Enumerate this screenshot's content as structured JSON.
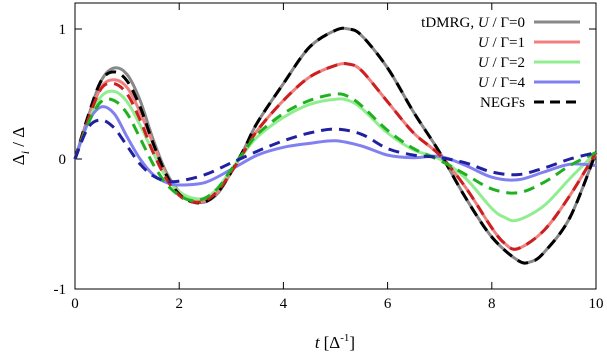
{
  "chart_data": {
    "type": "line",
    "xlabel": {
      "main": "t",
      "unit": "[Δ",
      "sup": "-1",
      "close": "]"
    },
    "ylabel": {
      "base": "Δ",
      "sub": "i",
      "rest": " / Δ"
    },
    "xlim": [
      0,
      10
    ],
    "ylim": [
      -1,
      1.2
    ],
    "xticks": [
      0,
      2,
      4,
      6,
      8,
      10
    ],
    "xtick_labels": [
      "0",
      "2",
      "4",
      "6",
      "8",
      "10"
    ],
    "yticks": [
      -1,
      0,
      1
    ],
    "ytick_labels": [
      "-1",
      "0",
      "1"
    ],
    "grid": false,
    "legend_position": "top-right",
    "legend": [
      {
        "label": "tDMRG, U / Γ=0",
        "color": "#888888",
        "dash": false
      },
      {
        "label": "U / Γ=1",
        "color": "#f08080",
        "dash": false
      },
      {
        "label": "U / Γ=2",
        "color": "#90ee90",
        "dash": false
      },
      {
        "label": "U / Γ=4",
        "color": "#8080f0",
        "dash": false
      },
      {
        "label": "NEGFs",
        "color": "#000000",
        "dash": true
      }
    ],
    "series": [
      {
        "style": "solid",
        "color": "#888888",
        "points": [
          [
            0,
            0
          ],
          [
            0.25,
            0.32
          ],
          [
            0.5,
            0.6
          ],
          [
            0.75,
            0.7
          ],
          [
            1,
            0.65
          ],
          [
            1.25,
            0.45
          ],
          [
            1.5,
            0.15
          ],
          [
            1.75,
            -0.1
          ],
          [
            2,
            -0.25
          ],
          [
            2.25,
            -0.32
          ],
          [
            2.5,
            -0.33
          ],
          [
            2.75,
            -0.26
          ],
          [
            3,
            -0.1
          ],
          [
            3.25,
            0.08
          ],
          [
            3.5,
            0.28
          ],
          [
            4,
            0.58
          ],
          [
            4.5,
            0.86
          ],
          [
            5,
            0.99
          ],
          [
            5.25,
            1.0
          ],
          [
            5.5,
            0.95
          ],
          [
            6,
            0.7
          ],
          [
            6.5,
            0.36
          ],
          [
            7,
            0.05
          ],
          [
            7.5,
            -0.3
          ],
          [
            8,
            -0.6
          ],
          [
            8.5,
            -0.78
          ],
          [
            8.75,
            -0.79
          ],
          [
            9,
            -0.72
          ],
          [
            9.5,
            -0.45
          ],
          [
            10,
            0.05
          ]
        ]
      },
      {
        "style": "solid",
        "color": "#f08080",
        "points": [
          [
            0,
            0
          ],
          [
            0.25,
            0.3
          ],
          [
            0.5,
            0.55
          ],
          [
            0.75,
            0.61
          ],
          [
            1,
            0.55
          ],
          [
            1.25,
            0.36
          ],
          [
            1.5,
            0.12
          ],
          [
            1.75,
            -0.12
          ],
          [
            2,
            -0.26
          ],
          [
            2.25,
            -0.32
          ],
          [
            2.5,
            -0.32
          ],
          [
            2.75,
            -0.25
          ],
          [
            3,
            -0.1
          ],
          [
            3.25,
            0.06
          ],
          [
            3.5,
            0.22
          ],
          [
            4,
            0.45
          ],
          [
            4.5,
            0.63
          ],
          [
            5,
            0.72
          ],
          [
            5.25,
            0.73
          ],
          [
            5.5,
            0.68
          ],
          [
            6,
            0.44
          ],
          [
            6.5,
            0.2
          ],
          [
            7,
            0.03
          ],
          [
            7.5,
            -0.22
          ],
          [
            8,
            -0.53
          ],
          [
            8.25,
            -0.65
          ],
          [
            8.5,
            -0.69
          ],
          [
            9,
            -0.55
          ],
          [
            9.5,
            -0.28
          ],
          [
            10,
            0.05
          ]
        ]
      },
      {
        "style": "solid",
        "color": "#90ee90",
        "points": [
          [
            0,
            0
          ],
          [
            0.25,
            0.28
          ],
          [
            0.5,
            0.48
          ],
          [
            0.75,
            0.52
          ],
          [
            1,
            0.44
          ],
          [
            1.25,
            0.26
          ],
          [
            1.5,
            0.05
          ],
          [
            1.75,
            -0.14
          ],
          [
            2,
            -0.25
          ],
          [
            2.25,
            -0.3
          ],
          [
            2.5,
            -0.3
          ],
          [
            2.75,
            -0.22
          ],
          [
            3,
            -0.08
          ],
          [
            3.25,
            0.05
          ],
          [
            3.5,
            0.17
          ],
          [
            4,
            0.32
          ],
          [
            4.5,
            0.42
          ],
          [
            5,
            0.46
          ],
          [
            5.25,
            0.45
          ],
          [
            5.5,
            0.39
          ],
          [
            6,
            0.2
          ],
          [
            6.5,
            0.07
          ],
          [
            7,
            0.0
          ],
          [
            7.5,
            -0.15
          ],
          [
            8,
            -0.38
          ],
          [
            8.25,
            -0.45
          ],
          [
            8.5,
            -0.47
          ],
          [
            9,
            -0.36
          ],
          [
            9.5,
            -0.15
          ],
          [
            10,
            0.05
          ]
        ]
      },
      {
        "style": "solid",
        "color": "#8080f0",
        "points": [
          [
            0,
            0
          ],
          [
            0.25,
            0.28
          ],
          [
            0.5,
            0.4
          ],
          [
            0.75,
            0.35
          ],
          [
            1,
            0.17
          ],
          [
            1.25,
            0.0
          ],
          [
            1.5,
            -0.12
          ],
          [
            1.75,
            -0.18
          ],
          [
            2,
            -0.2
          ],
          [
            2.5,
            -0.18
          ],
          [
            3,
            -0.08
          ],
          [
            3.5,
            0.03
          ],
          [
            4,
            0.09
          ],
          [
            4.5,
            0.12
          ],
          [
            5,
            0.14
          ],
          [
            5.5,
            0.1
          ],
          [
            6,
            0.03
          ],
          [
            6.5,
            0.01
          ],
          [
            7,
            0.02
          ],
          [
            7.5,
            -0.05
          ],
          [
            8,
            -0.14
          ],
          [
            8.5,
            -0.16
          ],
          [
            9,
            -0.1
          ],
          [
            9.5,
            -0.04
          ],
          [
            10,
            -0.05
          ]
        ]
      },
      {
        "style": "dash",
        "color": "#000000",
        "points": [
          [
            0,
            0
          ],
          [
            0.25,
            0.33
          ],
          [
            0.5,
            0.6
          ],
          [
            0.75,
            0.67
          ],
          [
            1,
            0.6
          ],
          [
            1.25,
            0.4
          ],
          [
            1.5,
            0.12
          ],
          [
            1.75,
            -0.12
          ],
          [
            2,
            -0.27
          ],
          [
            2.25,
            -0.33
          ],
          [
            2.5,
            -0.33
          ],
          [
            2.75,
            -0.25
          ],
          [
            3,
            -0.1
          ],
          [
            3.25,
            0.08
          ],
          [
            3.5,
            0.28
          ],
          [
            4,
            0.58
          ],
          [
            4.5,
            0.86
          ],
          [
            5,
            0.99
          ],
          [
            5.25,
            1.0
          ],
          [
            5.5,
            0.95
          ],
          [
            6,
            0.7
          ],
          [
            6.5,
            0.36
          ],
          [
            7,
            0.05
          ],
          [
            7.5,
            -0.3
          ],
          [
            8,
            -0.6
          ],
          [
            8.5,
            -0.78
          ],
          [
            8.75,
            -0.79
          ],
          [
            9,
            -0.72
          ],
          [
            9.5,
            -0.45
          ],
          [
            10,
            0.05
          ]
        ]
      },
      {
        "style": "dash",
        "color": "#cc2020",
        "points": [
          [
            0,
            0
          ],
          [
            0.25,
            0.3
          ],
          [
            0.5,
            0.54
          ],
          [
            0.75,
            0.58
          ],
          [
            1,
            0.5
          ],
          [
            1.25,
            0.3
          ],
          [
            1.5,
            0.05
          ],
          [
            1.75,
            -0.15
          ],
          [
            2,
            -0.28
          ],
          [
            2.25,
            -0.33
          ],
          [
            2.5,
            -0.32
          ],
          [
            2.75,
            -0.24
          ],
          [
            3,
            -0.1
          ],
          [
            3.25,
            0.06
          ],
          [
            3.5,
            0.22
          ],
          [
            4,
            0.45
          ],
          [
            4.5,
            0.63
          ],
          [
            5,
            0.72
          ],
          [
            5.25,
            0.73
          ],
          [
            5.5,
            0.68
          ],
          [
            6,
            0.44
          ],
          [
            6.5,
            0.2
          ],
          [
            7,
            0.03
          ],
          [
            7.5,
            -0.22
          ],
          [
            8,
            -0.53
          ],
          [
            8.25,
            -0.65
          ],
          [
            8.5,
            -0.69
          ],
          [
            9,
            -0.55
          ],
          [
            9.5,
            -0.28
          ],
          [
            10,
            0.05
          ]
        ]
      },
      {
        "style": "dash",
        "color": "#20b020",
        "points": [
          [
            0,
            0
          ],
          [
            0.25,
            0.27
          ],
          [
            0.5,
            0.44
          ],
          [
            0.75,
            0.45
          ],
          [
            1,
            0.35
          ],
          [
            1.25,
            0.16
          ],
          [
            1.5,
            -0.04
          ],
          [
            1.75,
            -0.19
          ],
          [
            2,
            -0.28
          ],
          [
            2.25,
            -0.32
          ],
          [
            2.5,
            -0.3
          ],
          [
            2.75,
            -0.22
          ],
          [
            3,
            -0.08
          ],
          [
            3.25,
            0.06
          ],
          [
            3.5,
            0.19
          ],
          [
            4,
            0.35
          ],
          [
            4.5,
            0.45
          ],
          [
            5,
            0.5
          ],
          [
            5.25,
            0.48
          ],
          [
            5.5,
            0.41
          ],
          [
            6,
            0.22
          ],
          [
            6.5,
            0.08
          ],
          [
            7,
            -0.01
          ],
          [
            7.5,
            -0.12
          ],
          [
            8,
            -0.23
          ],
          [
            8.5,
            -0.26
          ],
          [
            9,
            -0.18
          ],
          [
            9.5,
            -0.05
          ],
          [
            10,
            0.05
          ]
        ]
      },
      {
        "style": "dash",
        "color": "#2020a0",
        "points": [
          [
            0,
            0
          ],
          [
            0.25,
            0.24
          ],
          [
            0.5,
            0.3
          ],
          [
            0.75,
            0.24
          ],
          [
            1,
            0.1
          ],
          [
            1.25,
            -0.04
          ],
          [
            1.5,
            -0.13
          ],
          [
            1.75,
            -0.17
          ],
          [
            2,
            -0.17
          ],
          [
            2.5,
            -0.12
          ],
          [
            3,
            -0.03
          ],
          [
            3.5,
            0.06
          ],
          [
            4,
            0.14
          ],
          [
            4.5,
            0.2
          ],
          [
            5,
            0.23
          ],
          [
            5.5,
            0.19
          ],
          [
            6,
            0.08
          ],
          [
            6.5,
            0.03
          ],
          [
            7,
            0.01
          ],
          [
            7.5,
            -0.03
          ],
          [
            8,
            -0.1
          ],
          [
            8.5,
            -0.12
          ],
          [
            9,
            -0.07
          ],
          [
            9.5,
            0.0
          ],
          [
            10,
            0.05
          ]
        ]
      }
    ]
  }
}
